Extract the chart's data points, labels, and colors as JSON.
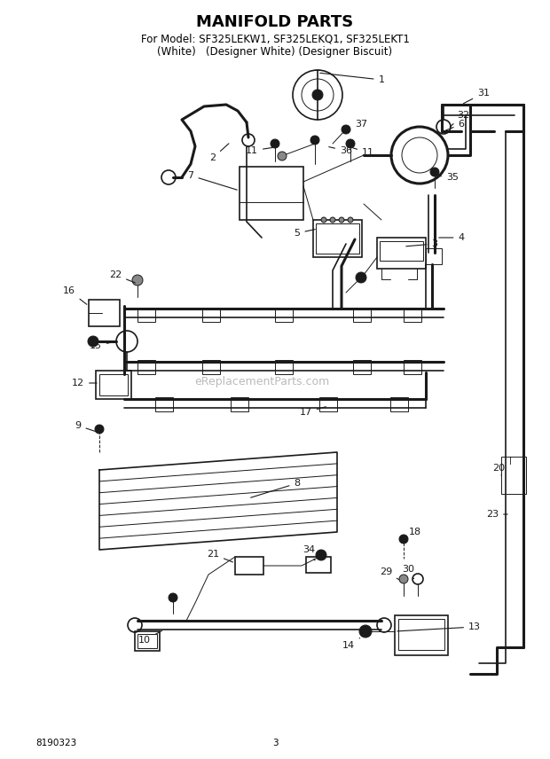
{
  "title": "MANIFOLD PARTS",
  "subtitle1": "For Model: SF325LEKW1, SF325LEKQ1, SF325LEKT1",
  "subtitle2": "(White)   (Designer White) (Designer Biscuit)",
  "doc_number": "8190323",
  "page_number": "3",
  "watermark": "eReplacementParts.com",
  "bg_color": "#ffffff",
  "lc": "#1a1a1a",
  "figw": 6.2,
  "figh": 8.56,
  "dpi": 100
}
